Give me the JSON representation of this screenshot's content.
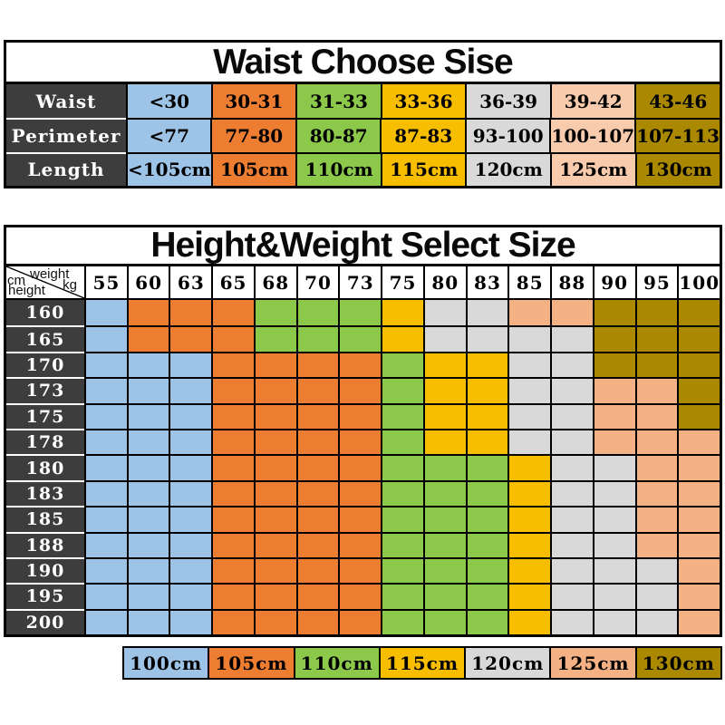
{
  "palette": {
    "blue": "#9DC3E6",
    "orange": "#ED7D31",
    "green": "#8CC94B",
    "yellow": "#F7BE00",
    "gray": "#D9D9D9",
    "peach_light": "#F8CBAD",
    "peach": "#F4B183",
    "gold": "#AA8900",
    "dark_header": "#3D3D3D"
  },
  "waist_table": {
    "title": "Waist Choose Sise",
    "column_colors": [
      "blue",
      "orange",
      "green",
      "yellow",
      "gray",
      "peach_light",
      "gold"
    ],
    "rows": [
      {
        "label": "Waist",
        "cells": [
          "<30",
          "30-31",
          "31-33",
          "33-36",
          "36-39",
          "39-42",
          "43-46"
        ]
      },
      {
        "label": "Perimeter",
        "cells": [
          "<77",
          "77-80",
          "80-87",
          "87-83",
          "93-100",
          "100-107",
          "107-113"
        ]
      },
      {
        "label": "Length",
        "cells": [
          "<105cm",
          "105cm",
          "110cm",
          "115cm",
          "120cm",
          "125cm",
          "130cm"
        ]
      }
    ]
  },
  "size_table": {
    "title": "Height&Weight Select Size",
    "corner": {
      "top_right": "weight",
      "unit_right": "kg",
      "unit_left": "cm",
      "bottom_left": "height"
    },
    "weights": [
      "55",
      "60",
      "63",
      "65",
      "68",
      "70",
      "73",
      "75",
      "80",
      "83",
      "85",
      "88",
      "90",
      "95",
      "100"
    ],
    "rows": [
      {
        "height": "160",
        "cells": [
          "blue",
          "orange",
          "orange",
          "orange",
          "green",
          "green",
          "green",
          "yellow",
          "gray",
          "gray",
          "peach",
          "peach",
          "gold",
          "gold",
          "gold"
        ]
      },
      {
        "height": "165",
        "cells": [
          "blue",
          "orange",
          "orange",
          "orange",
          "green",
          "green",
          "green",
          "yellow",
          "gray",
          "gray",
          "gray",
          "gray",
          "gold",
          "gold",
          "gold"
        ]
      },
      {
        "height": "170",
        "cells": [
          "blue",
          "blue",
          "blue",
          "orange",
          "orange",
          "orange",
          "orange",
          "green",
          "yellow",
          "yellow",
          "gray",
          "gray",
          "gold",
          "gold",
          "gold"
        ]
      },
      {
        "height": "173",
        "cells": [
          "blue",
          "blue",
          "blue",
          "orange",
          "orange",
          "orange",
          "orange",
          "green",
          "yellow",
          "yellow",
          "gray",
          "gray",
          "peach",
          "peach",
          "gold"
        ]
      },
      {
        "height": "175",
        "cells": [
          "blue",
          "blue",
          "blue",
          "orange",
          "orange",
          "orange",
          "orange",
          "green",
          "yellow",
          "yellow",
          "gray",
          "gray",
          "peach",
          "peach",
          "gold"
        ]
      },
      {
        "height": "178",
        "cells": [
          "blue",
          "blue",
          "blue",
          "orange",
          "orange",
          "orange",
          "orange",
          "green",
          "yellow",
          "yellow",
          "gray",
          "gray",
          "peach",
          "peach",
          "peach"
        ]
      },
      {
        "height": "180",
        "cells": [
          "blue",
          "blue",
          "blue",
          "orange",
          "orange",
          "orange",
          "orange",
          "green",
          "green",
          "green",
          "yellow",
          "gray",
          "gray",
          "peach",
          "peach"
        ]
      },
      {
        "height": "183",
        "cells": [
          "blue",
          "blue",
          "blue",
          "orange",
          "orange",
          "orange",
          "orange",
          "green",
          "green",
          "green",
          "yellow",
          "gray",
          "gray",
          "peach",
          "peach"
        ]
      },
      {
        "height": "185",
        "cells": [
          "blue",
          "blue",
          "blue",
          "orange",
          "orange",
          "orange",
          "orange",
          "green",
          "green",
          "green",
          "yellow",
          "gray",
          "gray",
          "peach",
          "peach"
        ]
      },
      {
        "height": "188",
        "cells": [
          "blue",
          "blue",
          "blue",
          "orange",
          "orange",
          "orange",
          "orange",
          "green",
          "green",
          "green",
          "yellow",
          "gray",
          "gray",
          "peach",
          "peach"
        ]
      },
      {
        "height": "190",
        "cells": [
          "blue",
          "blue",
          "blue",
          "orange",
          "orange",
          "orange",
          "orange",
          "green",
          "green",
          "green",
          "yellow",
          "gray",
          "gray",
          "gray",
          "peach"
        ]
      },
      {
        "height": "195",
        "cells": [
          "blue",
          "blue",
          "blue",
          "orange",
          "orange",
          "orange",
          "orange",
          "green",
          "green",
          "green",
          "yellow",
          "gray",
          "gray",
          "gray",
          "peach"
        ]
      },
      {
        "height": "200",
        "cells": [
          "blue",
          "blue",
          "blue",
          "orange",
          "orange",
          "orange",
          "orange",
          "green",
          "green",
          "green",
          "yellow",
          "gray",
          "gray",
          "gray",
          "peach"
        ]
      }
    ]
  },
  "legend": [
    {
      "label": "100cm",
      "color": "blue"
    },
    {
      "label": "105cm",
      "color": "orange"
    },
    {
      "label": "110cm",
      "color": "green"
    },
    {
      "label": "115cm",
      "color": "yellow"
    },
    {
      "label": "120cm",
      "color": "gray"
    },
    {
      "label": "125cm",
      "color": "peach"
    },
    {
      "label": "130cm",
      "color": "gold"
    }
  ]
}
